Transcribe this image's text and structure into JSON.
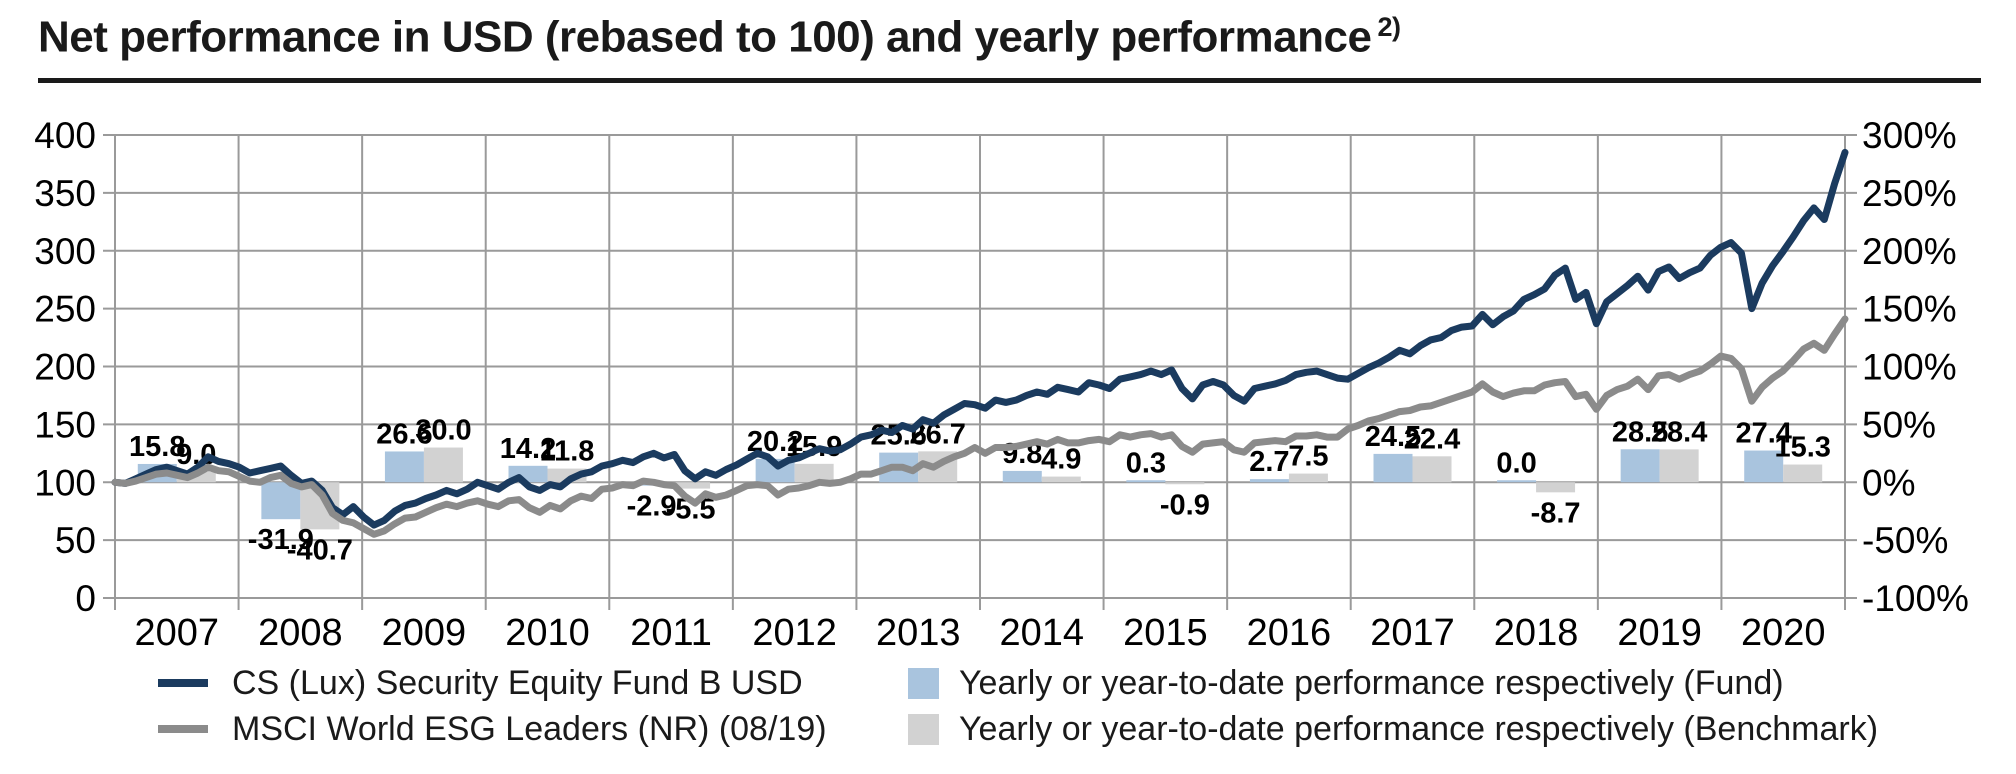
{
  "title": {
    "text": "Net performance in USD (rebased to 100) and yearly performance",
    "superscript": "2)"
  },
  "colors": {
    "fund_line": "#1b3b5f",
    "benchmark_line": "#8b8b8b",
    "fund_bar": "#a9c4de",
    "benchmark_bar": "#d2d2d2",
    "grid": "#9a9a9a",
    "text": "#000000"
  },
  "chart_data": {
    "type": "line+bar",
    "title": "Net performance in USD (rebased to 100) and yearly performance 2)",
    "grid": "on",
    "legend_position": "bottom",
    "left_axis": {
      "tick_values": [
        0,
        50,
        100,
        150,
        200,
        250,
        300,
        350,
        400
      ],
      "range": [
        0,
        400
      ],
      "rebased_baseline": 100
    },
    "right_axis": {
      "tick_labels_bottom_to_top": [
        "-100%",
        "-50%",
        "0%",
        "50%",
        "100%",
        "150%",
        "200%",
        "250%",
        "300%"
      ],
      "range_pct": [
        -100,
        300
      ]
    },
    "years": [
      "2007",
      "2008",
      "2009",
      "2010",
      "2011",
      "2012",
      "2013",
      "2014",
      "2015",
      "2016",
      "2017",
      "2018",
      "2019",
      "2020"
    ],
    "yearly_performance_pct": {
      "fund": [
        15.8,
        -31.9,
        26.6,
        14.2,
        -2.9,
        20.2,
        25.6,
        9.8,
        0.3,
        2.7,
        24.5,
        0.0,
        28.5,
        27.4
      ],
      "benchmark": [
        9.0,
        -40.7,
        30.0,
        11.8,
        -5.5,
        15.9,
        26.7,
        4.9,
        -0.9,
        7.5,
        22.4,
        -8.7,
        28.4,
        15.3
      ]
    },
    "series": [
      {
        "name": "CS (Lux) Security Equity Fund B USD",
        "color": "#1b3b5f",
        "monthly": [
          100,
          99,
          103,
          107,
          111,
          113,
          110,
          107,
          113,
          122,
          118,
          116,
          113,
          108,
          110,
          112,
          114,
          106,
          99,
          101,
          93,
          78,
          72,
          79,
          70,
          63,
          67,
          75,
          80,
          82,
          86,
          89,
          93,
          90,
          94,
          100,
          97,
          94,
          100,
          104,
          96,
          93,
          98,
          96,
          103,
          107,
          109,
          114,
          116,
          119,
          117,
          122,
          125,
          121,
          124,
          110,
          103,
          109,
          106,
          111,
          115,
          120,
          125,
          122,
          114,
          119,
          121,
          125,
          129,
          127,
          128,
          133,
          139,
          141,
          145,
          143,
          149,
          146,
          154,
          151,
          158,
          163,
          168,
          167,
          164,
          171,
          169,
          171,
          175,
          178,
          176,
          182,
          180,
          178,
          186,
          184,
          181,
          189,
          191,
          193,
          196,
          193,
          197,
          181,
          172,
          184,
          187,
          184,
          175,
          170,
          181,
          183,
          185,
          188,
          193,
          195,
          196,
          193,
          190,
          189,
          194,
          199,
          203,
          208,
          214,
          211,
          218,
          223,
          225,
          231,
          234,
          235,
          245,
          236,
          243,
          248,
          258,
          262,
          267,
          279,
          285,
          258,
          264,
          237,
          256,
          263,
          270,
          278,
          266,
          282,
          286,
          276,
          281,
          285,
          296,
          303,
          307,
          298,
          250,
          272,
          287,
          299,
          312,
          326,
          337,
          327,
          358,
          385
        ]
      },
      {
        "name": "MSCI World ESG Leaders (NR) (08/19)",
        "color": "#8b8b8b",
        "monthly": [
          100,
          99,
          101,
          104,
          107,
          108,
          106,
          104,
          108,
          113,
          110,
          109,
          105,
          101,
          100,
          104,
          106,
          99,
          96,
          98,
          89,
          73,
          67,
          65,
          60,
          55,
          58,
          64,
          69,
          70,
          74,
          78,
          81,
          79,
          82,
          84,
          81,
          79,
          84,
          85,
          78,
          74,
          80,
          77,
          84,
          88,
          86,
          94,
          95,
          98,
          97,
          101,
          100,
          98,
          97,
          88,
          82,
          90,
          87,
          89,
          93,
          97,
          98,
          97,
          89,
          94,
          95,
          97,
          100,
          99,
          100,
          103,
          107,
          107,
          110,
          113,
          113,
          110,
          116,
          113,
          118,
          122,
          125,
          130,
          125,
          130,
          130,
          131,
          133,
          135,
          133,
          137,
          134,
          134,
          136,
          137,
          135,
          141,
          139,
          141,
          142,
          139,
          141,
          131,
          126,
          133,
          134,
          135,
          128,
          126,
          134,
          135,
          136,
          135,
          140,
          140,
          141,
          139,
          139,
          146,
          149,
          153,
          155,
          158,
          161,
          162,
          165,
          166,
          169,
          172,
          175,
          178,
          185,
          178,
          174,
          177,
          179,
          179,
          184,
          186,
          187,
          174,
          176,
          163,
          175,
          180,
          183,
          189,
          180,
          192,
          193,
          189,
          193,
          196,
          202,
          209,
          207,
          198,
          170,
          182,
          190,
          196,
          205,
          215,
          220,
          214,
          228,
          241
        ]
      }
    ],
    "legend": {
      "fund_line": "CS (Lux) Security Equity Fund B USD",
      "benchmark_line": "MSCI World ESG Leaders (NR) (08/19)",
      "fund_bar": "Yearly or year-to-date performance respectively (Fund)",
      "benchmark_bar": "Yearly or year-to-date performance respectively (Benchmark)"
    }
  }
}
